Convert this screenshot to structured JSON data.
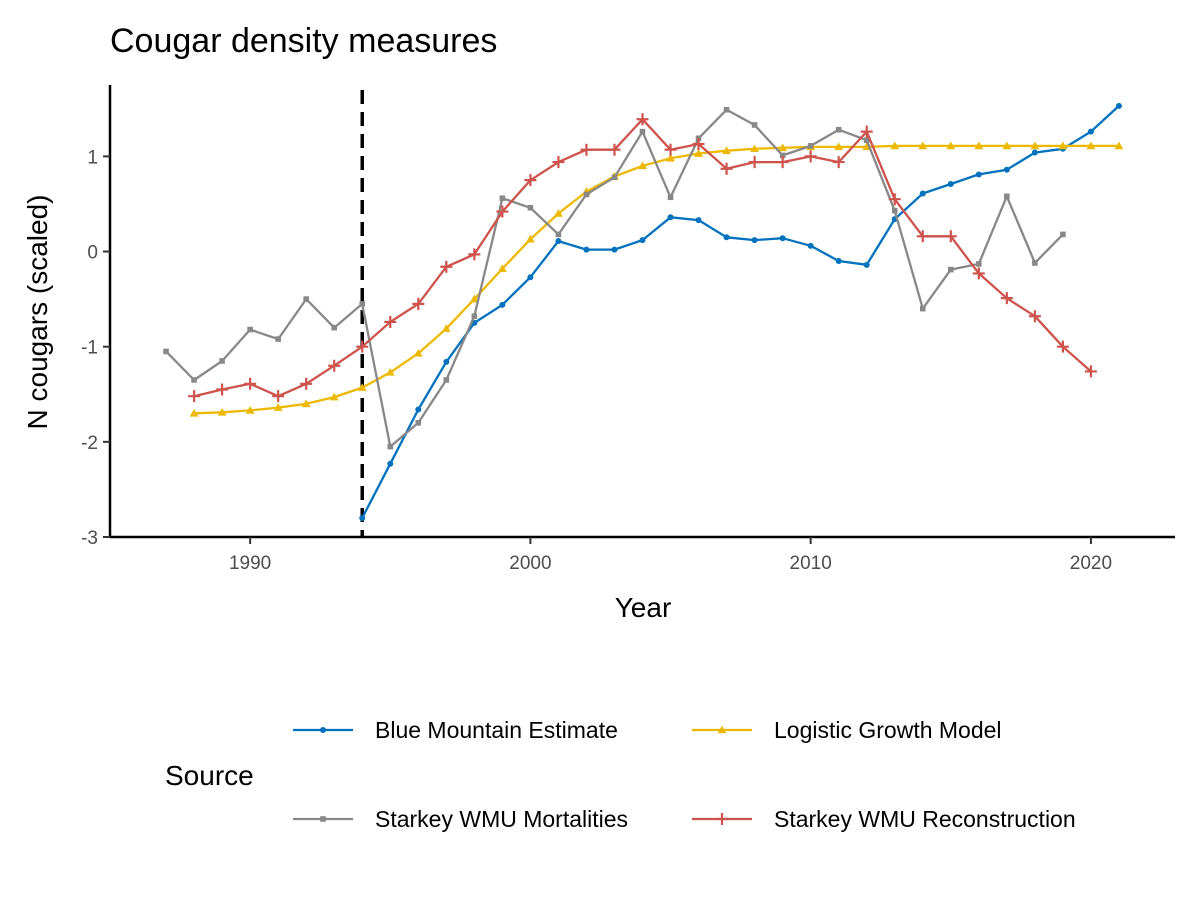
{
  "chart_data": {
    "type": "line",
    "title": "Cougar density measures",
    "xlabel": "Year",
    "ylabel": "N cougars (scaled)",
    "xlim": [
      1985,
      2023
    ],
    "ylim": [
      -3,
      1.75
    ],
    "x_ticks": [
      1990,
      2000,
      2010,
      2020
    ],
    "y_ticks": [
      -3,
      -2,
      -1,
      0,
      1
    ],
    "y_tick_labels": [
      "-3",
      "-2",
      "-1",
      "0",
      "1"
    ],
    "grid": false,
    "reference_line": {
      "type": "vertical",
      "x": 1994,
      "style": "dashed",
      "color": "#000000"
    },
    "legend": {
      "title": "Source",
      "position": "bottom",
      "ncol": 2
    },
    "series": [
      {
        "name": "Blue Mountain Estimate",
        "color": "#0072BD",
        "marker": "circle",
        "x": [
          1994,
          1995,
          1996,
          1997,
          1998,
          1999,
          2000,
          2001,
          2002,
          2003,
          2004,
          2005,
          2006,
          2007,
          2008,
          2009,
          2010,
          2011,
          2012,
          2013,
          2014,
          2015,
          2016,
          2017,
          2018,
          2019,
          2020,
          2021
        ],
        "y": [
          -2.8,
          -2.23,
          -1.66,
          -1.16,
          -0.75,
          -0.56,
          -0.27,
          0.11,
          0.02,
          0.02,
          0.12,
          0.36,
          0.33,
          0.15,
          0.12,
          0.14,
          0.06,
          -0.1,
          -0.14,
          0.34,
          0.61,
          0.71,
          0.81,
          0.86,
          1.04,
          1.08,
          1.26,
          1.53
        ]
      },
      {
        "name": "Logistic Growth Model",
        "color": "#EDB900",
        "marker": "triangle",
        "x": [
          1988,
          1989,
          1990,
          1991,
          1992,
          1993,
          1994,
          1995,
          1996,
          1997,
          1998,
          1999,
          2000,
          2001,
          2002,
          2003,
          2004,
          2005,
          2006,
          2007,
          2008,
          2009,
          2010,
          2011,
          2012,
          2013,
          2014,
          2015,
          2016,
          2017,
          2018,
          2019,
          2020,
          2021
        ],
        "y": [
          -1.7,
          -1.69,
          -1.67,
          -1.64,
          -1.6,
          -1.53,
          -1.43,
          -1.27,
          -1.07,
          -0.81,
          -0.5,
          -0.18,
          0.13,
          0.4,
          0.63,
          0.79,
          0.9,
          0.98,
          1.03,
          1.06,
          1.08,
          1.09,
          1.1,
          1.1,
          1.1,
          1.11,
          1.11,
          1.11,
          1.11,
          1.11,
          1.11,
          1.11,
          1.11,
          1.11
        ]
      },
      {
        "name": "Starkey WMU Mortalities",
        "color": "#888888",
        "marker": "square",
        "x": [
          1987,
          1988,
          1989,
          1990,
          1991,
          1992,
          1993,
          1994,
          1995,
          1996,
          1997,
          1998,
          1999,
          2000,
          2001,
          2002,
          2003,
          2004,
          2005,
          2006,
          2007,
          2008,
          2009,
          2010,
          2011,
          2012,
          2013,
          2014,
          2015,
          2016,
          2017,
          2018,
          2019
        ],
        "y": [
          -1.05,
          -1.35,
          -1.15,
          -0.82,
          -0.92,
          -0.5,
          -0.8,
          -0.55,
          -2.05,
          -1.8,
          -1.35,
          -0.68,
          0.56,
          0.46,
          0.18,
          0.6,
          0.78,
          1.26,
          0.57,
          1.19,
          1.49,
          1.33,
          1.01,
          1.11,
          1.28,
          1.17,
          0.43,
          -0.6,
          -0.19,
          -0.13,
          0.58,
          -0.12,
          0.18
        ]
      },
      {
        "name": "Starkey WMU Reconstruction",
        "color": "#CD534C",
        "marker": "plus",
        "x": [
          1988,
          1989,
          1990,
          1991,
          1992,
          1993,
          1994,
          1995,
          1996,
          1997,
          1998,
          1999,
          2000,
          2001,
          2002,
          2003,
          2004,
          2005,
          2006,
          2007,
          2008,
          2009,
          2010,
          2011,
          2012,
          2013,
          2014,
          2015,
          2016,
          2017,
          2018,
          2019,
          2020
        ],
        "y": [
          -1.52,
          -1.45,
          -1.39,
          -1.52,
          -1.39,
          -1.2,
          -1.0,
          -0.74,
          -0.55,
          -0.16,
          -0.03,
          0.42,
          0.75,
          0.94,
          1.07,
          1.07,
          1.39,
          1.07,
          1.13,
          0.87,
          0.94,
          0.94,
          1.0,
          0.94,
          1.26,
          0.55,
          0.16,
          0.16,
          -0.23,
          -0.49,
          -0.68,
          -1.0,
          -1.26
        ]
      }
    ]
  }
}
